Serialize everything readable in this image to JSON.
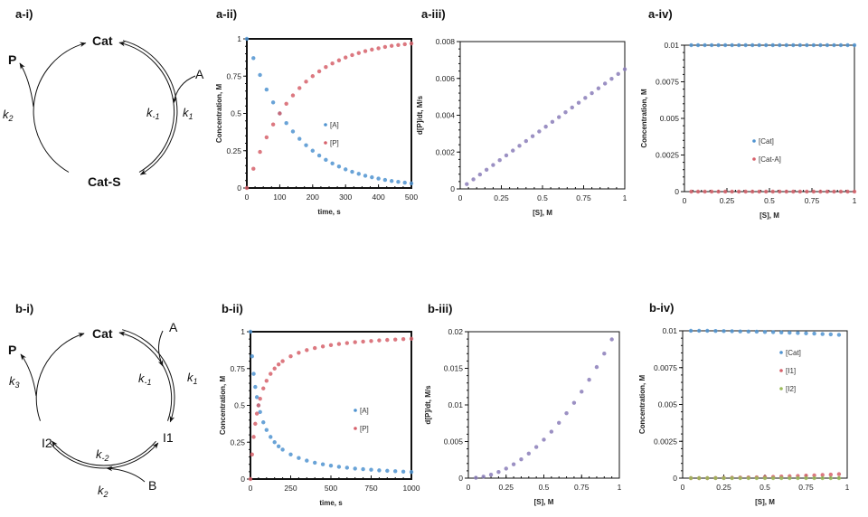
{
  "panels": {
    "a_i": "a-i)",
    "a_ii": "a-ii)",
    "a_iii": "a-iii)",
    "a_iv": "a-iv)",
    "b_i": "b-i)",
    "b_ii": "b-ii)",
    "b_iii": "b-iii)",
    "b_iv": "b-iv)"
  },
  "diagram_a": {
    "cat": "Cat",
    "cat_s": "Cat-S",
    "product": "P",
    "substrate": "A",
    "k2": "k",
    "k2_sub": "2",
    "km1": "k",
    "km1_sub": "-1",
    "k1": "k",
    "k1_sub": "1"
  },
  "diagram_b": {
    "cat": "Cat",
    "product": "P",
    "substrate_a": "A",
    "substrate_b": "B",
    "i1": "I1",
    "i2": "I2",
    "k3": "k",
    "k3_sub": "3",
    "km1": "k",
    "km1_sub": "-1",
    "k1": "k",
    "k1_sub": "1",
    "km2": "k",
    "km2_sub": "-2",
    "k2": "k",
    "k2_sub": "2"
  },
  "chart_data": [
    {
      "panel": "a-ii",
      "type": "scatter",
      "xlabel": "time, s",
      "ylabel": "Concentration, M",
      "xlim": [
        0,
        500
      ],
      "ylim": [
        0,
        1
      ],
      "xticks": [
        0,
        100,
        200,
        300,
        400,
        500
      ],
      "yticks": [
        0,
        0.25,
        0.5,
        0.75,
        1
      ],
      "grid": false,
      "legend": "center-right",
      "series": [
        {
          "name": "[A]",
          "color": "#4f93d0",
          "x": [
            0,
            20,
            40,
            60,
            80,
            100,
            120,
            140,
            160,
            180,
            200,
            220,
            240,
            260,
            280,
            300,
            320,
            340,
            360,
            380,
            400,
            420,
            440,
            460,
            480,
            500
          ],
          "y": [
            1,
            0.871,
            0.758,
            0.66,
            0.574,
            0.5,
            0.435,
            0.379,
            0.33,
            0.287,
            0.25,
            0.218,
            0.189,
            0.165,
            0.144,
            0.125,
            0.109,
            0.095,
            0.082,
            0.072,
            0.063,
            0.054,
            0.047,
            0.041,
            0.036,
            0.031
          ]
        },
        {
          "name": "[P]",
          "color": "#d6606a",
          "x": [
            0,
            20,
            40,
            60,
            80,
            100,
            120,
            140,
            160,
            180,
            200,
            220,
            240,
            260,
            280,
            300,
            320,
            340,
            360,
            380,
            400,
            420,
            440,
            460,
            480,
            500
          ],
          "y": [
            0,
            0.129,
            0.242,
            0.34,
            0.426,
            0.5,
            0.565,
            0.621,
            0.67,
            0.713,
            0.75,
            0.782,
            0.811,
            0.835,
            0.856,
            0.875,
            0.891,
            0.905,
            0.918,
            0.928,
            0.937,
            0.946,
            0.953,
            0.959,
            0.964,
            0.969
          ]
        }
      ]
    },
    {
      "panel": "a-iii",
      "type": "scatter",
      "xlabel": "[S], M",
      "ylabel": "d[P]/dt, M/s",
      "xlim": [
        0,
        1
      ],
      "ylim": [
        0,
        0.008
      ],
      "xticks": [
        0,
        0.25,
        0.5,
        0.75,
        1
      ],
      "yticks": [
        0,
        0.002,
        0.004,
        0.006,
        0.008
      ],
      "grid": false,
      "legend": "none",
      "series": [
        {
          "color": "#8a7cb8",
          "x": [
            0.04,
            0.08,
            0.12,
            0.16,
            0.2,
            0.24,
            0.28,
            0.32,
            0.36,
            0.4,
            0.44,
            0.48,
            0.52,
            0.56,
            0.6,
            0.64,
            0.68,
            0.72,
            0.76,
            0.8,
            0.84,
            0.88,
            0.92,
            0.96,
            1
          ],
          "y": [
            0.00026,
            0.00052,
            0.00078,
            0.00104,
            0.0013,
            0.00156,
            0.00182,
            0.00208,
            0.00234,
            0.0026,
            0.00286,
            0.00312,
            0.00338,
            0.00364,
            0.0039,
            0.00416,
            0.00442,
            0.00468,
            0.00494,
            0.0052,
            0.00546,
            0.00572,
            0.00598,
            0.00624,
            0.0065
          ]
        }
      ]
    },
    {
      "panel": "a-iv",
      "type": "scatter",
      "xlabel": "[S], M",
      "ylabel": "Concentration, M",
      "xlim": [
        0,
        1
      ],
      "ylim": [
        0,
        0.01
      ],
      "xticks": [
        0,
        0.25,
        0.5,
        0.75,
        1
      ],
      "yticks": [
        0,
        0.0025,
        0.005,
        0.0075,
        0.01
      ],
      "grid": false,
      "legend": "center",
      "series": [
        {
          "name": "[Cat]",
          "color": "#4f93d0",
          "x": [
            0.04,
            0.08,
            0.12,
            0.16,
            0.2,
            0.24,
            0.28,
            0.32,
            0.36,
            0.4,
            0.44,
            0.48,
            0.52,
            0.56,
            0.6,
            0.64,
            0.68,
            0.72,
            0.76,
            0.8,
            0.84,
            0.88,
            0.92,
            0.96,
            1
          ],
          "y": [
            0.01,
            0.01,
            0.01,
            0.01,
            0.01,
            0.01,
            0.01,
            0.01,
            0.01,
            0.01,
            0.01,
            0.01,
            0.01,
            0.01,
            0.01,
            0.01,
            0.01,
            0.01,
            0.01,
            0.01,
            0.01,
            0.01,
            0.01,
            0.01,
            0.01
          ]
        },
        {
          "name": "[Cat-A]",
          "color": "#d6606a",
          "x": [
            0.04,
            0.08,
            0.12,
            0.16,
            0.2,
            0.24,
            0.28,
            0.32,
            0.36,
            0.4,
            0.44,
            0.48,
            0.52,
            0.56,
            0.6,
            0.64,
            0.68,
            0.72,
            0.76,
            0.8,
            0.84,
            0.88,
            0.92,
            0.96,
            1
          ],
          "y": [
            0,
            0,
            0,
            0,
            0,
            0,
            0,
            0,
            0,
            0,
            0,
            0,
            0,
            0,
            0,
            0,
            0,
            0,
            0,
            0,
            0,
            0,
            0,
            0,
            0
          ]
        }
      ]
    },
    {
      "panel": "b-ii",
      "type": "scatter",
      "xlabel": "time, s",
      "ylabel": "Concentration, M",
      "xlim": [
        0,
        1000
      ],
      "ylim": [
        0,
        1
      ],
      "xticks": [
        0,
        250,
        500,
        750,
        1000
      ],
      "yticks": [
        0,
        0.25,
        0.5,
        0.75,
        1
      ],
      "grid": false,
      "legend": "center-right",
      "series": [
        {
          "name": "[A]",
          "color": "#4f93d0",
          "x": [
            0,
            10,
            20,
            30,
            40,
            50,
            60,
            80,
            100,
            125,
            150,
            175,
            200,
            250,
            300,
            350,
            400,
            450,
            500,
            550,
            600,
            650,
            700,
            750,
            800,
            850,
            900,
            950,
            1000
          ],
          "y": [
            1,
            0.833,
            0.714,
            0.625,
            0.556,
            0.5,
            0.455,
            0.385,
            0.333,
            0.286,
            0.25,
            0.222,
            0.2,
            0.167,
            0.143,
            0.125,
            0.111,
            0.1,
            0.091,
            0.083,
            0.077,
            0.071,
            0.067,
            0.063,
            0.059,
            0.056,
            0.053,
            0.05,
            0.048
          ]
        },
        {
          "name": "[P]",
          "color": "#d6606a",
          "x": [
            0,
            10,
            20,
            30,
            40,
            50,
            60,
            80,
            100,
            125,
            150,
            175,
            200,
            250,
            300,
            350,
            400,
            450,
            500,
            550,
            600,
            650,
            700,
            750,
            800,
            850,
            900,
            950,
            1000
          ],
          "y": [
            0,
            0.167,
            0.286,
            0.375,
            0.444,
            0.5,
            0.545,
            0.615,
            0.667,
            0.714,
            0.75,
            0.778,
            0.8,
            0.833,
            0.857,
            0.875,
            0.889,
            0.9,
            0.909,
            0.917,
            0.923,
            0.929,
            0.933,
            0.937,
            0.941,
            0.944,
            0.947,
            0.95,
            0.952
          ]
        }
      ]
    },
    {
      "panel": "b-iii",
      "type": "scatter",
      "xlabel": "[S], M",
      "ylabel": "d[P]/dt, M/s",
      "xlim": [
        0,
        1
      ],
      "ylim": [
        0,
        0.02
      ],
      "xticks": [
        0,
        0.25,
        0.5,
        0.75,
        1
      ],
      "yticks": [
        0,
        0.005,
        0.01,
        0.015,
        0.02
      ],
      "grid": false,
      "legend": "none",
      "series": [
        {
          "color": "#8a7cb8",
          "x": [
            0.05,
            0.1,
            0.15,
            0.2,
            0.25,
            0.3,
            0.35,
            0.4,
            0.45,
            0.5,
            0.55,
            0.6,
            0.65,
            0.7,
            0.75,
            0.8,
            0.85,
            0.9,
            0.95
          ],
          "y": [
            5e-05,
            0.00021,
            0.00047,
            0.00084,
            0.00131,
            0.00189,
            0.00257,
            0.00336,
            0.00425,
            0.00525,
            0.00635,
            0.00756,
            0.00887,
            0.01029,
            0.01181,
            0.01344,
            0.01517,
            0.01701,
            0.01895
          ]
        }
      ]
    },
    {
      "panel": "b-iv",
      "type": "scatter",
      "xlabel": "[S], M",
      "ylabel": "Concentration, M",
      "xlim": [
        0,
        1
      ],
      "ylim": [
        0,
        0.01
      ],
      "xticks": [
        0,
        0.25,
        0.5,
        0.75,
        1
      ],
      "yticks": [
        0,
        0.0025,
        0.005,
        0.0075,
        0.01
      ],
      "grid": false,
      "legend": "upper-center",
      "series": [
        {
          "name": "[Cat]",
          "color": "#4f93d0",
          "x": [
            0.05,
            0.1,
            0.15,
            0.2,
            0.25,
            0.3,
            0.35,
            0.4,
            0.45,
            0.5,
            0.55,
            0.6,
            0.65,
            0.7,
            0.75,
            0.8,
            0.85,
            0.9,
            0.95
          ],
          "y": [
            0.01,
            0.01,
            0.01,
            0.00999,
            0.00998,
            0.00997,
            0.00996,
            0.00995,
            0.00994,
            0.00992,
            0.00991,
            0.00989,
            0.00987,
            0.00985,
            0.00983,
            0.00981,
            0.00978,
            0.00976,
            0.00973
          ]
        },
        {
          "name": "[I1]",
          "color": "#d6606a",
          "x": [
            0.05,
            0.1,
            0.15,
            0.2,
            0.25,
            0.3,
            0.35,
            0.4,
            0.45,
            0.5,
            0.55,
            0.6,
            0.65,
            0.7,
            0.75,
            0.8,
            0.85,
            0.9,
            0.95
          ],
          "y": [
            0,
            0,
            0,
            1e-05,
            2e-05,
            3e-05,
            4e-05,
            5e-05,
            6e-05,
            8e-05,
            9e-05,
            0.00011,
            0.00013,
            0.00015,
            0.00017,
            0.00019,
            0.00022,
            0.00024,
            0.00027
          ]
        },
        {
          "name": "[I2]",
          "color": "#9bbb59",
          "x": [
            0.05,
            0.1,
            0.15,
            0.2,
            0.25,
            0.3,
            0.35,
            0.4,
            0.45,
            0.5,
            0.55,
            0.6,
            0.65,
            0.7,
            0.75,
            0.8,
            0.85,
            0.9,
            0.95
          ],
          "y": [
            0,
            0,
            0,
            0,
            0,
            0,
            0,
            0,
            0,
            0,
            0,
            0,
            0,
            0,
            0,
            0,
            0,
            0,
            0
          ]
        }
      ]
    }
  ]
}
